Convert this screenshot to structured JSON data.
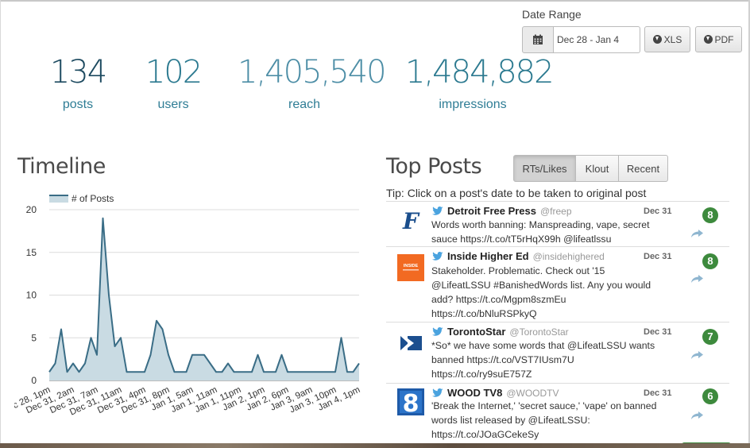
{
  "date_range": {
    "label": "Date Range",
    "value": "Dec 28 - Jan 4",
    "calendar_icon": "calendar-icon"
  },
  "export": {
    "xls_label": "XLS",
    "pdf_label": "PDF",
    "icon": "download-circle-icon"
  },
  "stats": [
    {
      "value": "134",
      "label": "posts"
    },
    {
      "value": "102",
      "label": "users"
    },
    {
      "value": "1,405,540",
      "label": "reach"
    },
    {
      "value": "1,484,882",
      "label": "impressions"
    }
  ],
  "timeline": {
    "title": "Timeline"
  },
  "top_posts": {
    "title": "Top Posts",
    "tabs": [
      {
        "label": "RTs/Likes",
        "active": true
      },
      {
        "label": "Klout",
        "active": false
      },
      {
        "label": "Recent",
        "active": false
      }
    ],
    "tip": "Tip: Click on a post's date to be taken to original post",
    "posts": [
      {
        "name": "Detroit Free Press",
        "handle": "@freep",
        "date": "Dec 31",
        "lines": [
          "Words worth banning: Manspreading, vape, secret",
          "sauce https://t.co/tT5rHqX99h @lifeatlssu"
        ],
        "count": "8",
        "logo_text": "F"
      },
      {
        "name": "Inside Higher Ed",
        "handle": "@insidehighered",
        "date": "Dec 31",
        "lines": [
          "Stakeholder. Problematic. Check out '15",
          "@LifeatLSSU #BanishedWords list. Any you would",
          "add? https://t.co/Mgpm8szmEu",
          "https://t.co/bNluRSPkyQ"
        ],
        "count": "8",
        "logo_text": "INSIDE"
      },
      {
        "name": "TorontoStar",
        "handle": "@TorontoStar",
        "date": "Dec 31",
        "lines": [
          "*So* we have some words that @LifeatLSSU wants",
          "banned https://t.co/VST7IUsm7U",
          "https://t.co/ry9suE757Z"
        ],
        "count": "7",
        "logo_text": ""
      },
      {
        "name": "WOOD TV8",
        "handle": "@WOODTV",
        "date": "Dec 31",
        "lines": [
          "'Break the Internet,' 'secret sauce,' 'vape' on banned",
          "words list released by @LifeatLSSU:",
          "https://t.co/JOaGCekeSy"
        ],
        "count": "6",
        "logo_text": "8"
      }
    ]
  },
  "chart_data": {
    "type": "area",
    "legend": [
      "# of Posts"
    ],
    "legend_position": "top-left",
    "ylim": [
      0,
      20
    ],
    "yticks": [
      0,
      5,
      10,
      15,
      20
    ],
    "grid": true,
    "x_tick_labels": [
      "Dec 28, 1pm",
      "Dec 31, 2am",
      "Dec 31, 7am",
      "Dec 31, 11am",
      "Dec 31, 4pm",
      "Dec 31, 8pm",
      "Jan 1, 5am",
      "Jan 1, 11am",
      "Jan 1, 11pm",
      "Jan 2, 1pm",
      "Jan 2, 6pm",
      "Jan 3, 9am",
      "Jan 3, 10pm",
      "Jan 4, 1pm"
    ],
    "series": [
      {
        "name": "# of Posts",
        "color": "#3a6d86",
        "values": [
          1,
          2,
          6,
          1,
          2,
          1,
          2,
          5,
          3,
          19,
          10,
          4,
          5,
          1,
          1,
          1,
          1,
          3,
          7,
          6,
          3,
          1,
          1,
          1,
          3,
          3,
          3,
          2,
          1,
          1,
          2,
          1,
          1,
          1,
          1,
          3,
          1,
          1,
          1,
          3,
          1,
          1,
          1,
          1,
          1,
          1,
          1,
          1,
          1,
          5,
          1,
          1,
          2
        ]
      }
    ]
  },
  "colors": {
    "stat_dark": "#1d4a60",
    "stat_mid": "#2c7a90",
    "badge_green": "#3d8a3d",
    "twitter_blue": "#4aa3df"
  }
}
